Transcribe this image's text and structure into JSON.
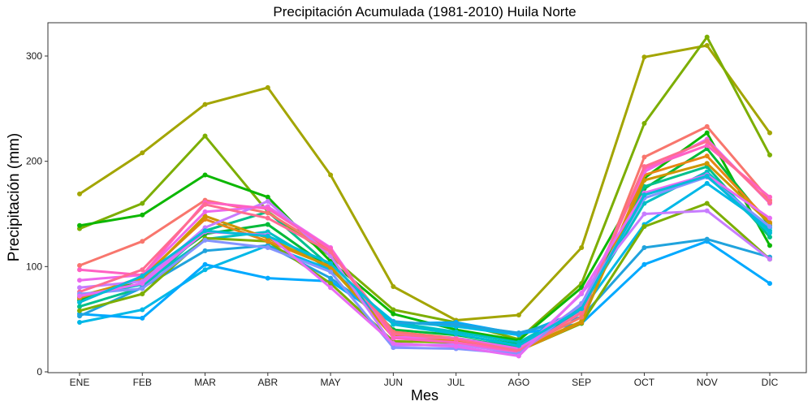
{
  "chart_data": {
    "type": "line",
    "title": "Precipitación Acumulada (1981-2010)  Huila Norte",
    "xlabel": "Mes",
    "ylabel": "Precipitación  (mm)",
    "categories": [
      "ENE",
      "FEB",
      "MAR",
      "ABR",
      "MAY",
      "JUN",
      "JUL",
      "AGO",
      "SEP",
      "OCT",
      "NOV",
      "DIC"
    ],
    "ylim": [
      0,
      330
    ],
    "yticks": [
      0,
      100,
      200,
      300
    ],
    "grid": false,
    "legend": "none",
    "series": [
      {
        "color": "#A3A500",
        "values": [
          169,
          208,
          254,
          270,
          187,
          81,
          49,
          54,
          118,
          299,
          310,
          227
        ]
      },
      {
        "color": "#7CAE00",
        "values": [
          136,
          160,
          224,
          152,
          110,
          59,
          47,
          31,
          84,
          236,
          318,
          206
        ]
      },
      {
        "color": "#0CB702",
        "values": [
          139,
          149,
          187,
          166,
          105,
          55,
          40,
          30,
          80,
          184,
          227,
          120
        ]
      },
      {
        "color": "#00BA38",
        "values": [
          68,
          88,
          131,
          140,
          98,
          40,
          35,
          26,
          62,
          174,
          212,
          139
        ]
      },
      {
        "color": "#00C08B",
        "values": [
          62,
          80,
          134,
          152,
          100,
          37,
          32,
          24,
          57,
          176,
          195,
          128
        ]
      },
      {
        "color": "#00BFC4",
        "values": [
          71,
          83,
          126,
          133,
          97,
          47,
          38,
          28,
          61,
          160,
          190,
          134
        ]
      },
      {
        "color": "#00B8E7",
        "values": [
          47,
          59,
          97,
          120,
          97,
          48,
          43,
          35,
          58,
          140,
          179,
          137
        ]
      },
      {
        "color": "#00A9FF",
        "values": [
          55,
          51,
          102,
          89,
          86,
          46,
          47,
          36,
          46,
          102,
          124,
          84
        ]
      },
      {
        "color": "#20A3DD",
        "values": [
          53,
          80,
          115,
          120,
          89,
          47,
          45,
          37,
          52,
          118,
          126,
          109
        ]
      },
      {
        "color": "#7CAE00",
        "values": [
          58,
          74,
          127,
          124,
          84,
          29,
          28,
          20,
          46,
          138,
          160,
          107
        ]
      },
      {
        "color": "#E68613",
        "values": [
          70,
          90,
          145,
          124,
          100,
          33,
          30,
          20,
          47,
          187,
          205,
          142
        ]
      },
      {
        "color": "#CD9600",
        "values": [
          72,
          88,
          148,
          127,
          99,
          34,
          31,
          21,
          48,
          182,
          198,
          141
        ]
      },
      {
        "color": "#F8766D",
        "values": [
          101,
          124,
          163,
          151,
          115,
          38,
          32,
          22,
          52,
          204,
          233,
          163
        ]
      },
      {
        "color": "#ED68ED",
        "values": [
          87,
          92,
          152,
          157,
          118,
          33,
          32,
          22,
          64,
          190,
          221,
          160
        ]
      },
      {
        "color": "#C77CFF",
        "values": [
          80,
          86,
          137,
          162,
          110,
          25,
          26,
          18,
          74,
          150,
          153,
          107
        ]
      },
      {
        "color": "#FF61C3",
        "values": [
          97,
          92,
          161,
          155,
          117,
          32,
          28,
          19,
          57,
          193,
          215,
          166
        ]
      },
      {
        "color": "#FF6C91",
        "values": [
          76,
          97,
          159,
          146,
          114,
          36,
          31,
          20,
          56,
          195,
          219,
          161
        ]
      },
      {
        "color": "#8494FF",
        "values": [
          74,
          79,
          125,
          118,
          95,
          23,
          22,
          17,
          65,
          165,
          185,
          138
        ]
      },
      {
        "color": "#E76BF3",
        "values": [
          72,
          84,
          133,
          130,
          80,
          27,
          24,
          15,
          75,
          170,
          187,
          146
        ]
      },
      {
        "color": "#00BCD8",
        "values": [
          66,
          91,
          134,
          129,
          103,
          45,
          36,
          25,
          60,
          168,
          186,
          132
        ]
      }
    ]
  }
}
